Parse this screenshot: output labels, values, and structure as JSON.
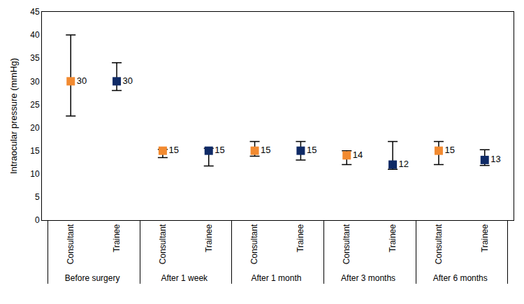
{
  "chart_data": {
    "type": "scatter",
    "y_label": "Intraocular pressure (mmHg)",
    "categories": [
      "Before surgery",
      "After 1 week",
      "After 1 month",
      "After 3 months",
      "After 6 months"
    ],
    "series": [
      {
        "name": "Consultant",
        "color": "#f28a30",
        "marker": "square",
        "values": [
          30,
          15,
          15,
          14,
          15
        ],
        "error_plus": [
          10,
          0.3,
          2,
          1,
          2
        ],
        "error_minus": [
          7.5,
          1.5,
          1.2,
          2,
          3
        ]
      },
      {
        "name": "Trainee",
        "color": "#0f2a66",
        "marker": "square",
        "values": [
          30,
          15,
          15,
          12,
          13
        ],
        "error_plus": [
          4,
          0.5,
          2,
          5,
          2.2
        ],
        "error_minus": [
          2,
          3.3,
          2,
          1,
          1.2
        ]
      }
    ],
    "ylim": [
      0,
      45
    ],
    "yticks": [
      0,
      5,
      10,
      15,
      20,
      25,
      30,
      35,
      40,
      45
    ],
    "grid": false,
    "data_labels": true
  }
}
